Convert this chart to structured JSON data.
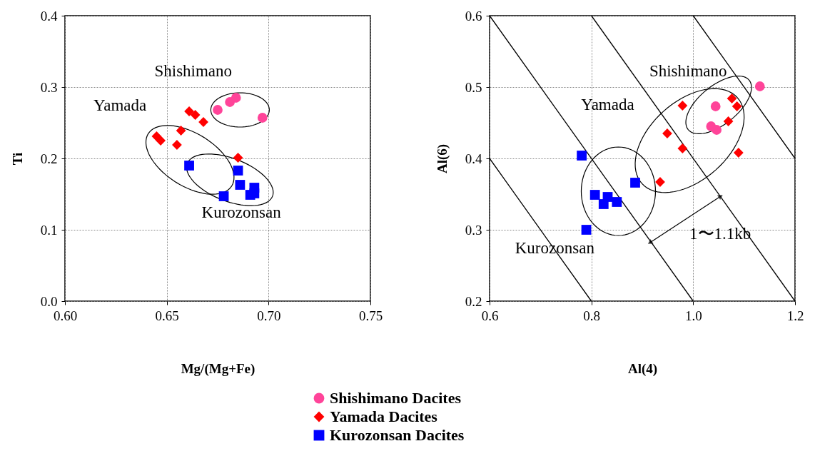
{
  "chart_data": [
    {
      "type": "scatter",
      "xlabel": "Mg/(Mg+Fe)",
      "ylabel": "Ti",
      "xlim": [
        0.6,
        0.75
      ],
      "ylim": [
        0,
        0.4
      ],
      "xticks": [
        {
          "value": 0.6,
          "label": "0.60"
        },
        {
          "value": 0.65,
          "label": "0.65"
        },
        {
          "value": 0.7,
          "label": "0.70"
        },
        {
          "value": 0.75,
          "label": "0.75"
        }
      ],
      "yticks": [
        {
          "value": 0,
          "label": "0.0"
        },
        0.1,
        0.2,
        0.3,
        0.4
      ],
      "grid": true,
      "legend": "bottom",
      "annotations": [
        "Shishimano",
        "Yamada",
        "Kurozonsan"
      ],
      "series": [
        {
          "name": "Shishimano Dacites",
          "color": "#ff4499",
          "marker": "circle",
          "x": [
            0.675,
            0.681,
            0.684,
            0.697
          ],
          "values": [
            0.268,
            0.279,
            0.285,
            0.257
          ]
        },
        {
          "name": "Yamada Dacites",
          "color": "#ff0000",
          "marker": "diamond",
          "x": [
            0.645,
            0.647,
            0.655,
            0.657,
            0.661,
            0.664,
            0.668,
            0.685
          ],
          "values": [
            0.231,
            0.225,
            0.219,
            0.239,
            0.266,
            0.261,
            0.251,
            0.201
          ]
        },
        {
          "name": "Kurozonsan Dacites",
          "color": "#0000ff",
          "marker": "square",
          "x": [
            0.661,
            0.685,
            0.686,
            0.678,
            0.691,
            0.693,
            0.693
          ],
          "values": [
            0.19,
            0.183,
            0.163,
            0.147,
            0.149,
            0.159,
            0.151
          ]
        }
      ]
    },
    {
      "type": "scatter",
      "xlabel": "Al(4)",
      "ylabel": "Al(6)",
      "xlim": [
        0.6,
        1.2
      ],
      "ylim": [
        0.2,
        0.6
      ],
      "xticks": [
        0.6,
        0.8,
        {
          "value": 1,
          "label": "1.0"
        },
        1.2
      ],
      "yticks": [
        0.2,
        0.3,
        0.4,
        0.5,
        0.6
      ],
      "grid": true,
      "legend": "bottom",
      "annotations": [
        "Shishimano",
        "Yamada",
        "Kurozonsan",
        "1〜1.1kb"
      ],
      "series": [
        {
          "type": "line",
          "color": "#000000",
          "marker": "none",
          "x": [
            0.6,
            0.8
          ],
          "values": [
            0.4,
            0.2
          ]
        },
        {
          "type": "line",
          "color": "#000000",
          "marker": "none",
          "x": [
            0.6,
            1.0
          ],
          "values": [
            0.6,
            0.2
          ]
        },
        {
          "type": "line",
          "color": "#000000",
          "marker": "none",
          "x": [
            0.8,
            1.2
          ],
          "values": [
            0.6,
            0.2
          ]
        },
        {
          "type": "line",
          "color": "#000000",
          "marker": "none",
          "x": [
            1.0,
            1.2
          ],
          "values": [
            0.6,
            0.4
          ]
        },
        {
          "name": "Shishimano Dacites",
          "color": "#ff4499",
          "marker": "circle",
          "x": [
            1.131,
            1.044,
            1.035,
            1.046
          ],
          "values": [
            0.501,
            0.473,
            0.445,
            0.44
          ]
        },
        {
          "name": "Yamada Dacites",
          "color": "#ff0000",
          "marker": "diamond",
          "x": [
            0.979,
            1.076,
            1.086,
            1.069,
            0.949,
            0.979,
            1.089,
            0.935
          ],
          "values": [
            0.474,
            0.484,
            0.473,
            0.452,
            0.435,
            0.414,
            0.408,
            0.367
          ]
        },
        {
          "name": "Kurozonsan Dacites",
          "color": "#0000ff",
          "marker": "square",
          "x": [
            0.781,
            0.886,
            0.807,
            0.832,
            0.85,
            0.824,
            0.79
          ],
          "values": [
            0.404,
            0.366,
            0.349,
            0.346,
            0.339,
            0.336,
            0.3
          ]
        }
      ]
    }
  ]
}
